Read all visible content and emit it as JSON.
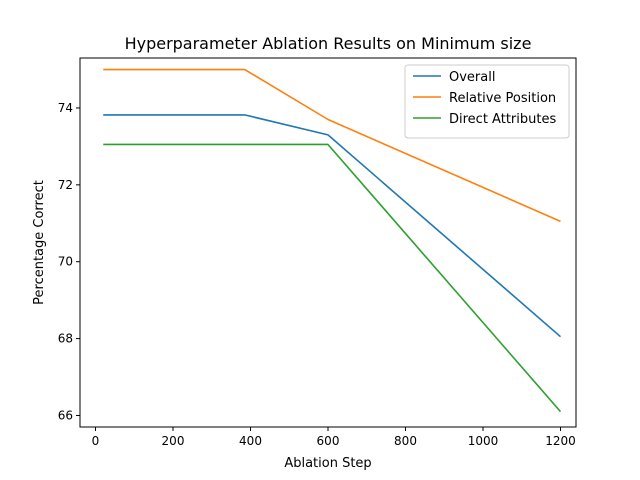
{
  "chart_data": {
    "type": "line",
    "title": "Hyperparameter Ablation Results on Minimum size",
    "xlabel": "Ablation Step",
    "ylabel": "Percentage Correct",
    "xlim": [
      -40,
      1240
    ],
    "ylim": [
      65.7,
      75.3
    ],
    "xticks": [
      0,
      200,
      400,
      600,
      800,
      1000,
      1200
    ],
    "yticks": [
      66,
      68,
      70,
      72,
      74
    ],
    "grid": false,
    "legend_position": "top-right",
    "x": [
      20,
      385,
      600,
      1200
    ],
    "series": [
      {
        "name": "Overall",
        "color": "#1f77b4",
        "values": [
          73.82,
          73.82,
          73.3,
          68.05
        ]
      },
      {
        "name": "Relative Position",
        "color": "#ff7f0e",
        "values": [
          75.0,
          75.0,
          73.7,
          71.05
        ]
      },
      {
        "name": "Direct Attributes",
        "color": "#2ca02c",
        "values": [
          73.05,
          73.05,
          73.05,
          66.1
        ]
      }
    ]
  }
}
